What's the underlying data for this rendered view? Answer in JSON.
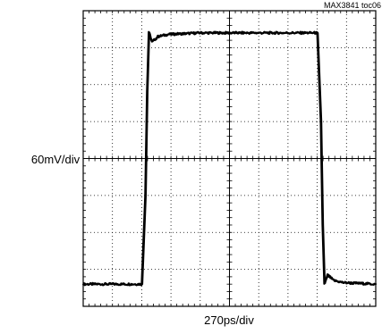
{
  "chart_data": {
    "type": "line",
    "title": "",
    "figure_id": "MAX3841 toc06",
    "xlabel": "270ps/div",
    "ylabel": "60mV/div",
    "x_divisions": 10,
    "y_divisions": 8,
    "grid": true,
    "x_unit": "div",
    "y_unit": "div",
    "series": [
      {
        "values_description": "square wave",
        "x": [
          0,
          2.0,
          2.12,
          2.18,
          2.24,
          2.35,
          2.55,
          2.9,
          4,
          8.0,
          8.12,
          8.18,
          8.24,
          8.35,
          8.55,
          8.9,
          10
        ],
        "y": [
          -3.4,
          -3.4,
          -1.0,
          1.8,
          3.4,
          3.15,
          3.3,
          3.36,
          3.4,
          3.4,
          1.0,
          -1.8,
          -3.4,
          -3.15,
          -3.3,
          -3.36,
          -3.4
        ]
      }
    ]
  },
  "colors": {
    "trace": "#000000",
    "grid": "#000000",
    "background": "#ffffff"
  }
}
